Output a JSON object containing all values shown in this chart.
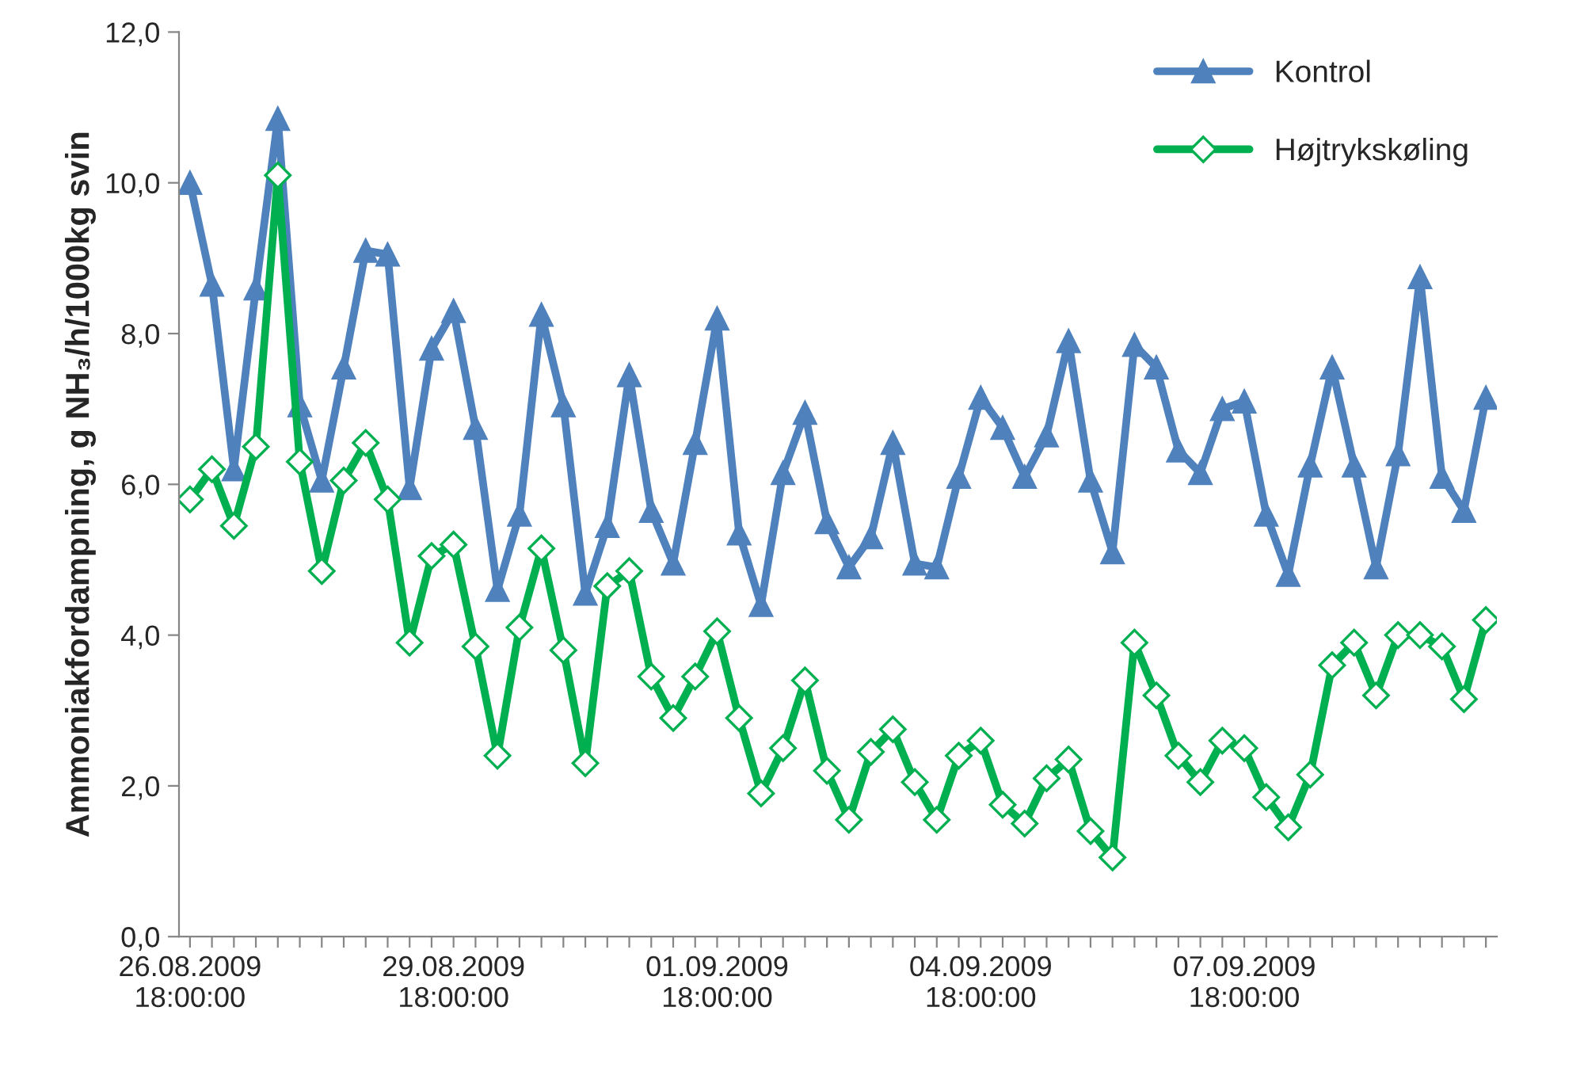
{
  "chart_data": {
    "type": "line",
    "ylabel": "Ammoniakfordampning, g NH₃/h/1000kg svin",
    "categories": [
      "26.08.2009\n18:00:00",
      null,
      null,
      null,
      null,
      null,
      null,
      null,
      null,
      null,
      null,
      null,
      "29.08.2009\n18:00:00",
      null,
      null,
      null,
      null,
      null,
      null,
      null,
      null,
      null,
      null,
      null,
      "01.09.2009\n18:00:00",
      null,
      null,
      null,
      null,
      null,
      null,
      null,
      null,
      null,
      null,
      null,
      "04.09.2009\n18:00:00",
      null,
      null,
      null,
      null,
      null,
      null,
      null,
      null,
      null,
      null,
      null,
      "07.09.2009\n18:00:00",
      null,
      null,
      null,
      null,
      null,
      null,
      null,
      null,
      null,
      null,
      null
    ],
    "series": [
      {
        "name": "Kontrol",
        "color": "#4f81bd",
        "marker": "triangle",
        "values": [
          10.0,
          8.65,
          6.2,
          8.6,
          10.85,
          7.05,
          6.05,
          7.55,
          9.1,
          9.05,
          5.95,
          7.8,
          8.3,
          6.75,
          4.6,
          5.6,
          8.25,
          7.05,
          4.55,
          5.45,
          7.45,
          5.65,
          4.95,
          6.55,
          8.2,
          5.35,
          4.4,
          6.15,
          6.95,
          5.5,
          4.9,
          5.3,
          6.55,
          4.95,
          4.9,
          6.1,
          7.15,
          6.75,
          6.1,
          6.65,
          7.9,
          6.05,
          5.1,
          7.85,
          7.55,
          6.45,
          6.15,
          7.0,
          7.1,
          5.6,
          4.8,
          6.25,
          7.55,
          6.25,
          4.9,
          6.4,
          8.75,
          6.1,
          5.65,
          7.15
        ]
      },
      {
        "name": "Højtrykskøling",
        "color": "#00b050",
        "marker": "diamond",
        "values": [
          5.8,
          6.2,
          5.45,
          6.5,
          10.1,
          6.3,
          4.85,
          6.05,
          6.55,
          5.8,
          3.9,
          5.05,
          5.2,
          3.85,
          2.4,
          4.1,
          5.15,
          3.8,
          2.3,
          4.65,
          4.85,
          3.45,
          2.9,
          3.45,
          4.05,
          2.9,
          1.9,
          2.5,
          3.4,
          2.2,
          1.55,
          2.45,
          2.75,
          2.05,
          1.55,
          2.4,
          2.6,
          1.75,
          1.5,
          2.1,
          2.35,
          1.4,
          1.05,
          3.9,
          3.2,
          2.4,
          2.05,
          2.6,
          2.5,
          1.85,
          1.45,
          2.15,
          3.6,
          3.9,
          3.2,
          4.0,
          4.0,
          3.85,
          3.15,
          4.2
        ]
      }
    ],
    "ylim": [
      0,
      12
    ],
    "yticks": [
      {
        "value": 0,
        "label": "0,0"
      },
      {
        "value": 2,
        "label": "2,0"
      },
      {
        "value": 4,
        "label": "4,0"
      },
      {
        "value": 6,
        "label": "6,0"
      },
      {
        "value": 8,
        "label": "8,0"
      },
      {
        "value": 10,
        "label": "10,0"
      },
      {
        "value": 12,
        "label": "12,0"
      }
    ],
    "grid": false,
    "legend": "top right",
    "line_style": "solid"
  }
}
